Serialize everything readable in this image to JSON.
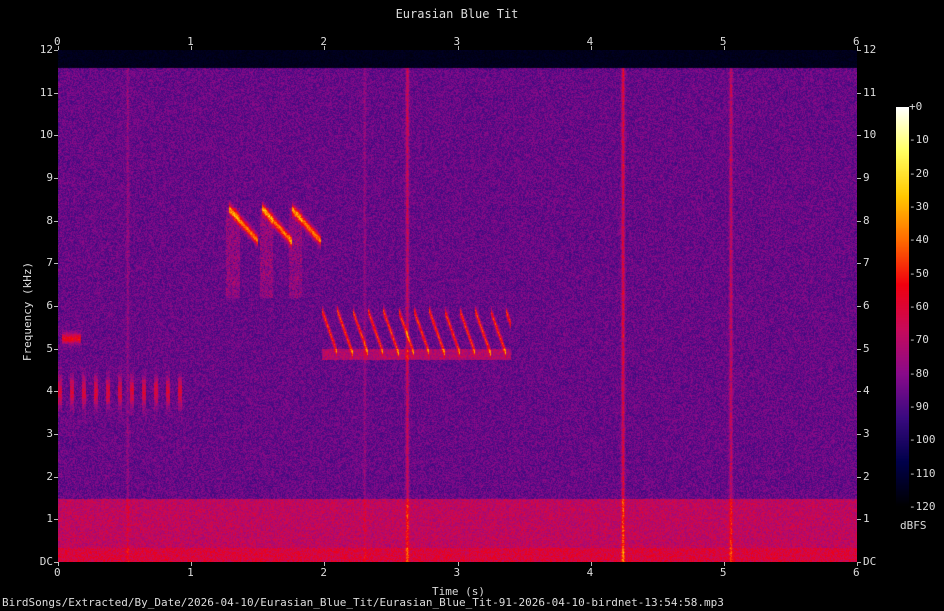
{
  "chart_data": {
    "type": "heatmap",
    "title": "Eurasian Blue Tit",
    "xlabel": "Time (s)",
    "ylabel": "Frequency (kHz)",
    "xlim": [
      0,
      6
    ],
    "ylim": [
      0,
      12
    ],
    "x_ticks": [
      "0",
      "1",
      "2",
      "3",
      "4",
      "5",
      "6"
    ],
    "y_ticks": [
      "DC",
      "1",
      "2",
      "3",
      "4",
      "5",
      "6",
      "7",
      "8",
      "9",
      "10",
      "11",
      "12"
    ],
    "colorbar": {
      "label": "dBFS",
      "range": [
        -120,
        0
      ],
      "ticks": [
        "+0",
        "-10",
        "-20",
        "-30",
        "-40",
        "-50",
        "-60",
        "-70",
        "-80",
        "-90",
        "-100",
        "-110",
        "-120"
      ],
      "colormap": [
        "#000000",
        "#00004a",
        "#3a0a80",
        "#8a0a8a",
        "#c80a5a",
        "#f0000f",
        "#ff6a00",
        "#ffc800",
        "#ffff60",
        "#ffffff"
      ]
    },
    "grid": false,
    "legend": "right",
    "footer": "BirdSongs/Extracted/By_Date/2026-04-10/Eurasian_Blue_Tit/Eurasian_Blue_Tit-91-2026-04-10-birdnet-13:54:58.mp3"
  }
}
